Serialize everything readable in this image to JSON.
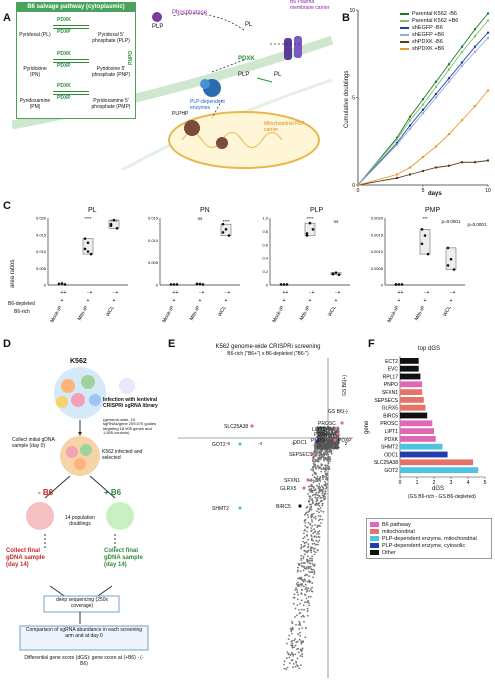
{
  "panelA": {
    "letter": "A",
    "box_title": "B6 salvage pathway (cytoplasmic)",
    "rows": [
      {
        "left": "Pyridoxal (PL)",
        "right": "Pyridoxal 5' phosphate (PLP)",
        "fwd": "PDXK",
        "rev": "PDXP"
      },
      {
        "left": "Pyridoxine (PN)",
        "right": "Pyridoxine 5' phosphate (PNP)",
        "fwd": "PDXK",
        "rev": "PDXP"
      },
      {
        "left": "Pyridoxamine (PM)",
        "right": "Pyridoxamine 5' phosphate (PMP)",
        "fwd": "PDXK",
        "rev": "PDXP"
      }
    ],
    "pnpo": "PNPO",
    "labels": {
      "plp1": "PLP",
      "pl": "PL",
      "phosphatase": "Phosphatase",
      "carrier": "B6 Plasma membrane carrier",
      "pdxk": "PDXK",
      "pl2": "PL",
      "plp2": "PLP",
      "enzymes": "PLP-dependent enzymes",
      "plphp": "PLPHP",
      "mito_carrier": "Mitochondrial PLP carrier"
    }
  },
  "panelB": {
    "letter": "B",
    "ylabel": "Cumulative doublings",
    "xlabel": "days",
    "legend": [
      {
        "name": "Parental K562 -B6",
        "color": "#1b7a2a"
      },
      {
        "name": "Parental K562 +B6",
        "color": "#7dc36b"
      },
      {
        "name": "shEGFP -B6",
        "color": "#1f3f9a"
      },
      {
        "name": "shEGFP +B6",
        "color": "#8fa9e6"
      },
      {
        "name": "shPDXK -B6",
        "color": "#5a3a1a"
      },
      {
        "name": "shPDXK +B6",
        "color": "#e89a2c"
      }
    ]
  },
  "panelC": {
    "letter": "C",
    "ylabel": "area ratios",
    "row_labels": [
      "B6-depleted",
      "B6-rich"
    ],
    "xcats": [
      "Mock-IP",
      "Mito-IP",
      "WCL"
    ],
    "plots": [
      {
        "title": "PL",
        "sig": [
          "****",
          "****"
        ]
      },
      {
        "title": "PN",
        "sig": [
          "ns",
          "****"
        ]
      },
      {
        "title": "PLP",
        "sig": [
          "****",
          "ns"
        ]
      },
      {
        "title": "PMP",
        "sig": [
          "***",
          "p=0.0001",
          "p=0.0001"
        ]
      }
    ],
    "ytick_sets": [
      [
        "0",
        "0.005",
        "0.010",
        "0.015",
        "0.020"
      ],
      [
        "0",
        "0.005",
        "0.010",
        "0.015"
      ],
      [
        "0",
        "0.2",
        "0.4",
        "0.6",
        "0.8",
        "1.0"
      ],
      [
        "0",
        "0.0005",
        "0.0010",
        "0.0015",
        "0.0020"
      ]
    ]
  },
  "panelD": {
    "letter": "D",
    "k562": "K562",
    "infection": "Infection with lentiviral CRISPRi sgRNA library",
    "library_note": "(genome-wide, 10 sgRNAs/gene 209,070 guides targeting 18,905 genes and 1,895 controls)",
    "collect_initial": "Collect initial gDNA sample (day 0)",
    "infected": "K562 infected and selected",
    "minus_b6": "- B6",
    "plus_b6": "+ B6",
    "doublings": "14 population doublings",
    "collect_final_red": "Collect final gDNA sample (day 14)",
    "collect_final_green": "Collect final gDNA sample (day 14)",
    "deep_seq": "deep sequencing (250x coverage)",
    "comparison": "Comparison of sgRNA abundance in each screening arm and at day 0",
    "dgs": "Differential gene score (dGS): gene score at (+B6) - (-B6)"
  },
  "panelE": {
    "letter": "E",
    "title": "K562 genome-wide CRISPRi screening",
    "subtitle": "B6-rich (\"B6+\") x B6-depleted (\"B6-\")",
    "yaxis": "GS B6(+)",
    "xaxis": "GS B6(-)",
    "ticks": [
      "-6",
      "-4",
      "-2",
      "2"
    ],
    "genes": [
      "SLC25A38",
      "PROSC",
      "LIPT1",
      "PDXK",
      "ODC1",
      "PNPO",
      "PDXP",
      "GOT2",
      "SEPSECS",
      "SFXN1",
      "GLRX5",
      "BIRC5",
      "SHMT2"
    ]
  },
  "panelF": {
    "letter": "F",
    "title": "top dGS",
    "ylabel": "gene",
    "xlabel": "dGS",
    "xsub": "(GS B6-rich - GS B6-depleted)",
    "xticks": [
      "0",
      "1",
      "2",
      "3",
      "4",
      "5"
    ],
    "legend": [
      {
        "name": "B6 pathway",
        "color": "#e066b8"
      },
      {
        "name": "mitochondrial",
        "color": "#e57368"
      },
      {
        "name": "PLP-dependent enzyme, mitochondrial",
        "color": "#4fc3e0"
      },
      {
        "name": "PLP-dependent enzyme, cytosolic",
        "color": "#1f3fb0"
      },
      {
        "name": "Other",
        "color": "#111111"
      }
    ]
  },
  "chart_data": [
    {
      "type": "line",
      "title": "",
      "xlabel": "days",
      "ylabel": "Cumulative doublings",
      "x": [
        0,
        3,
        4,
        5,
        6,
        7,
        8,
        9,
        10
      ],
      "xlim": [
        0,
        10
      ],
      "ylim": [
        0,
        10
      ],
      "series": [
        {
          "name": "Parental K562 -B6",
          "values": [
            0,
            2.7,
            3.9,
            4.9,
            5.9,
            6.9,
            7.9,
            8.9,
            9.8
          ]
        },
        {
          "name": "Parental K562 +B6",
          "values": [
            0,
            2.6,
            3.7,
            4.6,
            5.6,
            6.6,
            7.6,
            8.5,
            9.4
          ]
        },
        {
          "name": "shEGFP -B6",
          "values": [
            0,
            2.4,
            3.4,
            4.3,
            5.2,
            6.1,
            7.0,
            7.9,
            8.7
          ]
        },
        {
          "name": "shEGFP +B6",
          "values": [
            0,
            2.3,
            3.2,
            4.1,
            5.0,
            5.9,
            6.8,
            7.6,
            8.4
          ]
        },
        {
          "name": "shPDXK -B6",
          "values": [
            0,
            0.4,
            0.6,
            0.8,
            1.0,
            1.1,
            1.3,
            1.3,
            1.4
          ]
        },
        {
          "name": "shPDXK +B6",
          "values": [
            0,
            0.6,
            1.0,
            1.6,
            2.2,
            2.9,
            3.7,
            4.5,
            5.4
          ]
        }
      ]
    },
    {
      "type": "bar",
      "title": "top dGS",
      "ylabel": "gene",
      "xlabel": "dGS",
      "xlim": [
        0,
        5
      ],
      "categories": [
        "ECT2",
        "EVC",
        "RPL17",
        "PNPO",
        "SFXN1",
        "SEPSECS",
        "GLRX5",
        "BIRC5",
        "PROSC",
        "LIPT1",
        "PDXK",
        "SHMT2",
        "ODC1",
        "SLC25A38",
        "GOT2"
      ],
      "values": [
        1.1,
        1.1,
        1.2,
        1.3,
        1.3,
        1.4,
        1.5,
        1.6,
        1.9,
        2.0,
        2.1,
        2.5,
        2.8,
        4.3,
        4.6
      ],
      "groups": [
        "Other",
        "Other",
        "Other",
        "B6 pathway",
        "mitochondrial",
        "mitochondrial",
        "mitochondrial",
        "Other",
        "B6 pathway",
        "B6 pathway",
        "B6 pathway",
        "PLP-dependent enzyme, mitochondrial",
        "PLP-dependent enzyme, cytosolic",
        "mitochondrial",
        "PLP-dependent enzyme, mitochondrial"
      ]
    }
  ]
}
